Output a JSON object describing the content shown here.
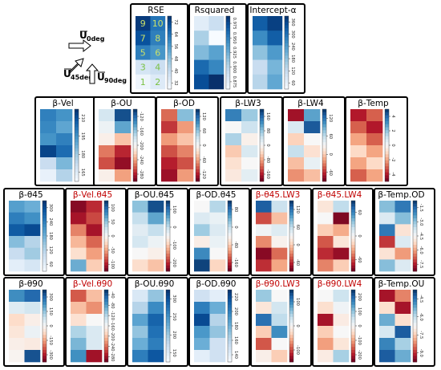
{
  "legend": {
    "u0": "U",
    "u0_sub": "0deg",
    "u45": "U",
    "u45_sub": "45deg",
    "u90": "U",
    "u90_sub": "90deg"
  },
  "colors": {
    "blues": [
      "#f7fbff",
      "#deebf7",
      "#c6dbef",
      "#9ecae1",
      "#6baed6",
      "#4292c6",
      "#2171b5",
      "#08519c",
      "#08306b"
    ],
    "rdbu": [
      "#67001f",
      "#b2182b",
      "#d6604d",
      "#f4a582",
      "#fddbc7",
      "#f7f7f7",
      "#d1e5f0",
      "#92c5de",
      "#4393c3",
      "#2166ac",
      "#053061"
    ],
    "title_red": "#c00000",
    "title_black": "#000000",
    "rse_text_light": "#ffffff",
    "rse_text_green": "#7ac143"
  },
  "chart_data": [
    {
      "type": "heatmap",
      "title": "RSE",
      "title_color": "black",
      "cmap": "blues",
      "range": [
        28,
        74
      ],
      "ticks": [
        "72",
        "64",
        "56",
        "48",
        "40",
        "32"
      ],
      "cell_labels": [
        [
          "9",
          "10"
        ],
        [
          "7",
          "8"
        ],
        [
          "5",
          "6"
        ],
        [
          "3",
          "4"
        ],
        [
          "1",
          "2"
        ]
      ],
      "values": [
        [
          72,
          62
        ],
        [
          68,
          60
        ],
        [
          60,
          56
        ],
        [
          36,
          38
        ],
        [
          30,
          34
        ]
      ]
    },
    {
      "type": "heatmap",
      "title": "Rsquared",
      "title_color": "black",
      "cmap": "blues",
      "range": [
        0.86,
        0.95
      ],
      "ticks": [
        "0.975",
        "0.950",
        "0.925",
        "0.900",
        "0.875"
      ],
      "values": [
        [
          0.87,
          0.88
        ],
        [
          0.89,
          0.86
        ],
        [
          0.9,
          0.91
        ],
        [
          0.93,
          0.92
        ],
        [
          0.94,
          0.95
        ]
      ]
    },
    {
      "type": "heatmap",
      "title": "Intercept-α",
      "title_color": "black",
      "cmap": "blues",
      "range": [
        40,
        380
      ],
      "ticks": [
        "360",
        "300",
        "240",
        "180",
        "120",
        "60"
      ],
      "values": [
        [
          320,
          360
        ],
        [
          260,
          320
        ],
        [
          180,
          240
        ],
        [
          120,
          200
        ],
        [
          140,
          220
        ]
      ]
    },
    {
      "type": "heatmap",
      "title": "β-Vel",
      "title_color": "black",
      "cmap": "blues",
      "range": [
        155,
        220
      ],
      "ticks": [
        "210",
        "195",
        "180",
        "165"
      ],
      "values": [
        [
          200,
          195
        ],
        [
          198,
          190
        ],
        [
          195,
          200
        ],
        [
          215,
          205
        ],
        [
          170,
          185
        ],
        [
          160,
          175
        ]
      ]
    },
    {
      "type": "heatmap",
      "title": "β-OU",
      "title_color": "black",
      "cmap": "rdbu",
      "range": [
        -280,
        -110
      ],
      "ticks": [
        "-120",
        "-160",
        "-200",
        "-240",
        "-280"
      ],
      "values": [
        [
          -180,
          -120
        ],
        [
          -190,
          -150
        ],
        [
          -200,
          -220
        ],
        [
          -240,
          -260
        ],
        [
          -250,
          -270
        ],
        [
          -200,
          -230
        ]
      ]
    },
    {
      "type": "heatmap",
      "title": "β-OD",
      "title_color": "black",
      "cmap": "rdbu",
      "range": [
        -140,
        140
      ],
      "ticks": [
        "120",
        "60",
        "0",
        "-60",
        "-120"
      ],
      "values": [
        [
          -80,
          60
        ],
        [
          -100,
          -60
        ],
        [
          -60,
          -40
        ],
        [
          -90,
          -70
        ],
        [
          -110,
          -90
        ],
        [
          -120,
          -60
        ]
      ]
    },
    {
      "type": "heatmap",
      "title": "β-LW3",
      "title_color": "black",
      "cmap": "rdbu",
      "range": [
        -200,
        180
      ],
      "ticks": [
        "160",
        "80",
        "0",
        "-80",
        "-160"
      ],
      "values": [
        [
          120,
          60
        ],
        [
          -10,
          30
        ],
        [
          50,
          -20
        ],
        [
          -60,
          20
        ],
        [
          -40,
          -10
        ],
        [
          -30,
          10
        ]
      ]
    },
    {
      "type": "heatmap",
      "title": "β-LW4",
      "title_color": "black",
      "cmap": "rdbu",
      "range": [
        -120,
        140
      ],
      "ticks": [
        "120",
        "60",
        "0",
        "-60"
      ],
      "values": [
        [
          -100,
          80
        ],
        [
          30,
          120
        ],
        [
          -20,
          10
        ],
        [
          40,
          -10
        ],
        [
          -30,
          20
        ],
        [
          -50,
          -30
        ]
      ]
    },
    {
      "type": "heatmap",
      "title": "β-Temp",
      "title_color": "black",
      "cmap": "rdbu",
      "range": [
        -5,
        5
      ],
      "ticks": [
        "4",
        "2",
        "0",
        "-2",
        "-4"
      ],
      "values": [
        [
          -4,
          -3
        ],
        [
          -3,
          -4
        ],
        [
          -2,
          -3
        ],
        [
          -1,
          -2
        ],
        [
          -2,
          -1
        ],
        [
          -3,
          -2
        ]
      ]
    },
    {
      "type": "heatmap",
      "title": "β-θ45",
      "title_color": "black",
      "cmap": "blues",
      "range": [
        30,
        330
      ],
      "ticks": [
        "300",
        "240",
        "180",
        "120",
        "60"
      ],
      "values": [
        [
          200,
          180
        ],
        [
          240,
          220
        ],
        [
          280,
          300
        ],
        [
          160,
          120
        ],
        [
          100,
          140
        ],
        [
          60,
          80
        ]
      ]
    },
    {
      "type": "heatmap",
      "title": "β-Vel.θ45",
      "title_color": "red",
      "cmap": "rdbu",
      "range": [
        -120,
        120
      ],
      "ticks": [
        "100",
        "50",
        "0",
        "-50",
        "-100"
      ],
      "values": [
        [
          -110,
          -90
        ],
        [
          -100,
          -80
        ],
        [
          -60,
          -100
        ],
        [
          -40,
          -70
        ],
        [
          -20,
          -50
        ],
        [
          60,
          -30
        ]
      ]
    },
    {
      "type": "heatmap",
      "title": "β-OU.θ45",
      "title_color": "black",
      "cmap": "rdbu",
      "range": [
        -220,
        120
      ],
      "ticks": [
        "100",
        "0",
        "-100",
        "-200"
      ],
      "values": [
        [
          20,
          100
        ],
        [
          -10,
          40
        ],
        [
          -30,
          -10
        ],
        [
          -20,
          -40
        ],
        [
          -50,
          -60
        ],
        [
          -80,
          -100
        ]
      ]
    },
    {
      "type": "heatmap",
      "title": "β-OD.θ45",
      "title_color": "black",
      "cmap": "rdbu",
      "range": [
        -170,
        110
      ],
      "ticks": [
        "80",
        "0",
        "-80",
        "-160"
      ],
      "values": [
        [
          -30,
          10
        ],
        [
          -10,
          -20
        ],
        [
          20,
          -10
        ],
        [
          -40,
          -20
        ],
        [
          60,
          -30
        ],
        [
          100,
          -60
        ]
      ]
    },
    {
      "type": "heatmap",
      "title": "β-θ45.LW3",
      "title_color": "red",
      "cmap": "rdbu",
      "range": [
        -100,
        130
      ],
      "ticks": [
        "120",
        "60",
        "0",
        "-60"
      ],
      "values": [
        [
          110,
          40
        ],
        [
          -60,
          -20
        ],
        [
          20,
          30
        ],
        [
          -40,
          10
        ],
        [
          -90,
          -50
        ],
        [
          -70,
          -30
        ]
      ]
    },
    {
      "type": "heatmap",
      "title": "β-θ45.LW4",
      "title_color": "red",
      "cmap": "rdbu",
      "range": [
        -90,
        70
      ],
      "ticks": [
        "60",
        "0",
        "-60"
      ],
      "values": [
        [
          -20,
          10
        ],
        [
          -10,
          -85
        ],
        [
          -30,
          -40
        ],
        [
          -60,
          -20
        ],
        [
          -70,
          -80
        ],
        [
          -50,
          -30
        ]
      ]
    },
    {
      "type": "heatmap",
      "title": "β-Temp.OD",
      "title_color": "black",
      "cmap": "rdbu",
      "range": [
        -8,
        -1
      ],
      "ticks": [
        "-1.5",
        "-3.0",
        "-4.5",
        "-6.0",
        "-7.5"
      ],
      "values": [
        [
          -3,
          -2
        ],
        [
          -4,
          -3
        ],
        [
          -2,
          -5
        ],
        [
          -7,
          -4
        ],
        [
          -5,
          -6
        ],
        [
          -3,
          -4
        ]
      ]
    },
    {
      "type": "heatmap",
      "title": "β-θ90",
      "title_color": "black",
      "cmap": "rdbu",
      "range": [
        -320,
        320
      ],
      "ticks": [
        "300",
        "150",
        "0",
        "-150",
        "-300"
      ],
      "values": [
        [
          200,
          250
        ],
        [
          40,
          60
        ],
        [
          -60,
          -20
        ],
        [
          -40,
          20
        ],
        [
          -20,
          -30
        ],
        [
          -10,
          280
        ]
      ]
    },
    {
      "type": "heatmap",
      "title": "β-Vel.θ90",
      "title_color": "red",
      "cmap": "rdbu",
      "range": [
        -290,
        -30
      ],
      "ticks": [
        "-40",
        "-80",
        "-120",
        "-160",
        "-200",
        "-240",
        "-280"
      ],
      "values": [
        [
          -240,
          -200
        ],
        [
          -200,
          -220
        ],
        [
          -180,
          -160
        ],
        [
          -120,
          -140
        ],
        [
          -100,
          -140
        ],
        [
          -80,
          -270
        ]
      ]
    },
    {
      "type": "heatmap",
      "title": "β-OU.θ90",
      "title_color": "black",
      "cmap": "blues",
      "range": [
        120,
        320
      ],
      "ticks": [
        "300",
        "250",
        "200",
        "150"
      ],
      "values": [
        [
          150,
          200
        ],
        [
          180,
          250
        ],
        [
          230,
          280
        ],
        [
          200,
          270
        ],
        [
          220,
          260
        ],
        [
          260,
          290
        ]
      ]
    },
    {
      "type": "heatmap",
      "title": "β-OD.θ90",
      "title_color": "black",
      "cmap": "blues",
      "range": [
        130,
        230
      ],
      "ticks": [
        "220",
        "200",
        "180",
        "160",
        "140"
      ],
      "values": [
        [
          150,
          140
        ],
        [
          200,
          180
        ],
        [
          220,
          160
        ],
        [
          190,
          170
        ],
        [
          180,
          150
        ],
        [
          140,
          150
        ]
      ]
    },
    {
      "type": "heatmap",
      "title": "β-θ90.LW3",
      "title_color": "red",
      "cmap": "rdbu",
      "range": [
        -180,
        140
      ],
      "ticks": [
        "100",
        "0",
        "-100"
      ],
      "values": [
        [
          40,
          -20
        ],
        [
          -40,
          10
        ],
        [
          100,
          20
        ],
        [
          -60,
          80
        ],
        [
          -120,
          -20
        ],
        [
          -30,
          -60
        ]
      ]
    },
    {
      "type": "heatmap",
      "title": "β-θ90.LW4",
      "title_color": "red",
      "cmap": "rdbu",
      "range": [
        -260,
        220
      ],
      "ticks": [
        "200",
        "100",
        "0",
        "-100",
        "-200"
      ],
      "values": [
        [
          -20,
          30
        ],
        [
          -60,
          -10
        ],
        [
          -220,
          -40
        ],
        [
          -80,
          -20
        ],
        [
          -120,
          -50
        ],
        [
          -40,
          60
        ]
      ]
    },
    {
      "type": "heatmap",
      "title": "β-Temp.OU",
      "title_color": "black",
      "cmap": "rdbu",
      "range": [
        -9.5,
        -3.5
      ],
      "ticks": [
        "-4.5",
        "-6.0",
        "-7.5",
        "-9.0"
      ],
      "values": [
        [
          -9,
          -8
        ],
        [
          -7,
          -9
        ],
        [
          -5,
          -7
        ],
        [
          -6,
          -4
        ],
        [
          -4.5,
          -5.5
        ],
        [
          -4,
          -5
        ]
      ]
    }
  ]
}
